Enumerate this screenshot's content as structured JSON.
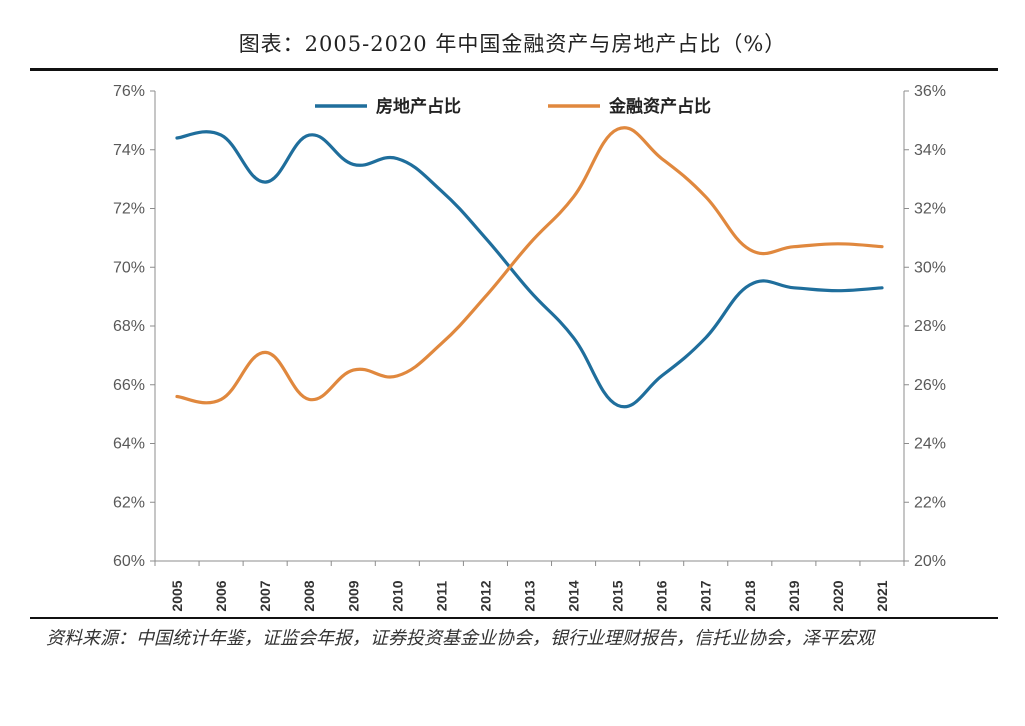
{
  "title": "图表：2005-2020 年中国金融资产与房地产占比（%）",
  "source": "资料来源：中国统计年鉴，证监会年报，证券投资基金业协会，银行业理财报告，信托业协会，泽平宏观",
  "chart_data": {
    "type": "line",
    "x": [
      "2005",
      "2006",
      "2007",
      "2008",
      "2009",
      "2010",
      "2011",
      "2012",
      "2013",
      "2014",
      "2015",
      "2016",
      "2017",
      "2018",
      "2019",
      "2020",
      "2021"
    ],
    "series": [
      {
        "name": "房地产占比",
        "axis": "left",
        "color": "#1F6E9C",
        "values": [
          74.4,
          74.5,
          72.9,
          74.5,
          73.5,
          73.7,
          72.6,
          71.0,
          69.2,
          67.6,
          65.3,
          66.3,
          67.6,
          69.4,
          69.3,
          69.2,
          69.3
        ]
      },
      {
        "name": "金融资产占比",
        "axis": "right",
        "color": "#E0883E",
        "values": [
          25.6,
          25.5,
          27.1,
          25.5,
          26.5,
          26.3,
          27.4,
          29.0,
          30.8,
          32.4,
          34.7,
          33.7,
          32.4,
          30.6,
          30.7,
          30.8,
          30.7
        ]
      }
    ],
    "y_left": {
      "range": [
        60,
        76
      ],
      "ticks": [
        "60%",
        "62%",
        "64%",
        "66%",
        "68%",
        "70%",
        "72%",
        "74%",
        "76%"
      ]
    },
    "y_right": {
      "range": [
        20,
        36
      ],
      "ticks": [
        "20%",
        "22%",
        "24%",
        "26%",
        "28%",
        "30%",
        "32%",
        "34%",
        "36%"
      ]
    },
    "legend_position": "top-center",
    "grid": false
  }
}
